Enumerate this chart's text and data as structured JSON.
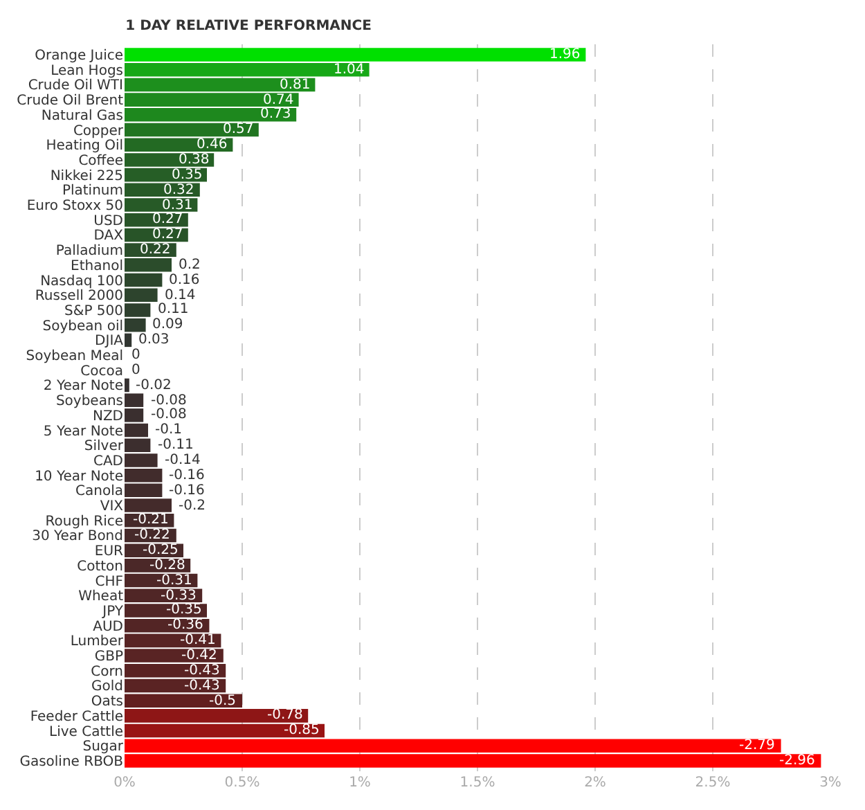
{
  "chart_data": {
    "type": "bar",
    "title": "1 DAY RELATIVE PERFORMANCE",
    "orientation": "horizontal",
    "categories": [
      "Orange Juice",
      "Lean Hogs",
      "Crude Oil WTI",
      "Crude Oil Brent",
      "Natural Gas",
      "Copper",
      "Heating Oil",
      "Coffee",
      "Nikkei 225",
      "Platinum",
      "Euro Stoxx 50",
      "USD",
      "DAX",
      "Palladium",
      "Ethanol",
      "Nasdaq 100",
      "Russell 2000",
      "S&P 500",
      "Soybean oil",
      "DJIA",
      "Soybean Meal",
      "Cocoa",
      "2 Year Note",
      "Soybeans",
      "NZD",
      "5 Year Note",
      "Silver",
      "CAD",
      "10 Year Note",
      "Canola",
      "VIX",
      "Rough Rice",
      "30 Year Bond",
      "EUR",
      "Cotton",
      "CHF",
      "Wheat",
      "JPY",
      "AUD",
      "Lumber",
      "GBP",
      "Corn",
      "Gold",
      "Oats",
      "Feeder Cattle",
      "Live Cattle",
      "Sugar",
      "Gasoline RBOB"
    ],
    "values": [
      1.96,
      1.04,
      0.81,
      0.74,
      0.73,
      0.57,
      0.46,
      0.38,
      0.35,
      0.32,
      0.31,
      0.27,
      0.27,
      0.22,
      0.2,
      0.16,
      0.14,
      0.11,
      0.09,
      0.03,
      0,
      0,
      -0.02,
      -0.08,
      -0.08,
      -0.1,
      -0.11,
      -0.14,
      -0.16,
      -0.16,
      -0.2,
      -0.21,
      -0.22,
      -0.25,
      -0.28,
      -0.31,
      -0.33,
      -0.35,
      -0.36,
      -0.41,
      -0.42,
      -0.43,
      -0.43,
      -0.5,
      -0.78,
      -0.85,
      -2.79,
      -2.96
    ],
    "base": [
      null,
      null,
      null,
      null,
      null,
      null,
      null,
      null,
      null,
      null,
      null,
      null,
      null,
      null,
      null,
      null,
      null,
      null,
      null,
      null,
      null,
      null,
      0.02,
      0.08,
      0.08,
      0.1,
      0.11,
      0.14,
      0.16,
      0.16,
      0.2,
      0.21,
      0.22,
      0.25,
      0.28,
      0.31,
      0.33,
      0.35,
      0.36,
      0.41,
      0.42,
      0.43,
      0.43,
      0.5,
      0.78,
      0.85,
      2.79,
      2.96
    ],
    "value_labels": [
      "1.96",
      "1.04",
      "0.81",
      "0.74",
      "0.73",
      "0.57",
      "0.46",
      "0.38",
      "0.35",
      "0.32",
      "0.31",
      "0.27",
      "0.27",
      "0.22",
      "0.2",
      "0.16",
      "0.14",
      "0.11",
      "0.09",
      "0.03",
      "0",
      "0",
      "-0.02",
      "-0.08",
      "-0.08",
      "-0.1",
      "-0.11",
      "-0.14",
      "-0.16",
      "-0.16",
      "-0.2",
      "-0.21",
      "-0.22",
      "-0.25",
      "-0.28",
      "-0.31",
      "-0.33",
      "-0.35",
      "-0.36",
      "-0.41",
      "-0.42",
      "-0.43",
      "-0.43",
      "-0.5",
      "-0.78",
      "-0.85",
      "-2.79",
      "-2.96"
    ],
    "colors": [
      "#00e000",
      "#17a817",
      "#1d8f1d",
      "#1e8a1e",
      "#1e881e",
      "#217521",
      "#236a23",
      "#256125",
      "#265e26",
      "#275a27",
      "#275a27",
      "#285428",
      "#285428",
      "#2a4e2a",
      "#2b4c2b",
      "#2c462c",
      "#2d442d",
      "#2e402e",
      "#2f3e2f",
      "#313631",
      "#333333",
      "#333333",
      "#353030",
      "#3a2f2f",
      "#3a2f2f",
      "#3c2e2e",
      "#3c2e2e",
      "#3f2d2d",
      "#412c2c",
      "#412c2c",
      "#442b2b",
      "#452a2a",
      "#462a2a",
      "#482929",
      "#4b2828",
      "#4e2727",
      "#502626",
      "#522626",
      "#532525",
      "#582424",
      "#592424",
      "#5a2323",
      "#5a2323",
      "#621f1f",
      "#8e1616",
      "#991414",
      "#ff0000",
      "#ff0000"
    ],
    "xlim": [
      0,
      3
    ],
    "xticks": [
      {
        "value": 0,
        "label": "0%"
      },
      {
        "value": 0.5,
        "label": "0.5%"
      },
      {
        "value": 1,
        "label": "1%"
      },
      {
        "value": 1.5,
        "label": "1.5%"
      },
      {
        "value": 2,
        "label": "2%"
      },
      {
        "value": 2.5,
        "label": "2.5%"
      },
      {
        "value": 3,
        "label": "3%"
      }
    ],
    "grid": "x"
  }
}
